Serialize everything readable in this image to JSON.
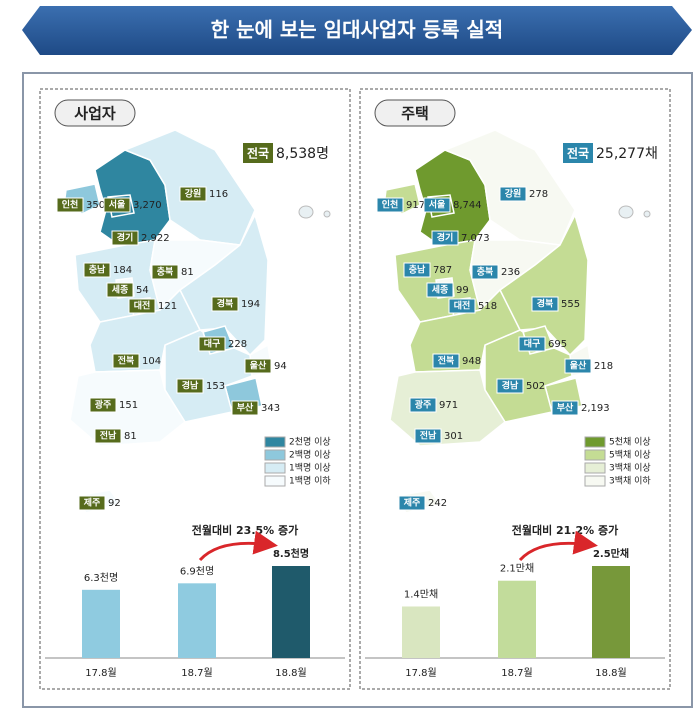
{
  "title": "한 눈에 보는 임대사업자 등록 실적",
  "panels": [
    {
      "tag": "사업자",
      "total_label": "전국",
      "total": "8,538명",
      "regions": [
        {
          "name": "인천",
          "value": "350",
          "color": "#8ec8dc"
        },
        {
          "name": "서울",
          "value": "3,270",
          "color": "#2f86a0"
        },
        {
          "name": "경기",
          "value": "2,922",
          "color": "#2f86a0"
        },
        {
          "name": "강원",
          "value": "116",
          "color": "#d6ecf4"
        },
        {
          "name": "충남",
          "value": "184",
          "color": "#d6ecf4"
        },
        {
          "name": "충북",
          "value": "81",
          "color": "#f6fbfd"
        },
        {
          "name": "세종",
          "value": "54",
          "color": "#f6fbfd"
        },
        {
          "name": "대전",
          "value": "121",
          "color": "#d6ecf4"
        },
        {
          "name": "경북",
          "value": "194",
          "color": "#d6ecf4"
        },
        {
          "name": "대구",
          "value": "228",
          "color": "#8ec8dc"
        },
        {
          "name": "울산",
          "value": "94",
          "color": "#f6fbfd"
        },
        {
          "name": "부산",
          "value": "343",
          "color": "#8ec8dc"
        },
        {
          "name": "경남",
          "value": "153",
          "color": "#d6ecf4"
        },
        {
          "name": "전북",
          "value": "104",
          "color": "#d6ecf4"
        },
        {
          "name": "광주",
          "value": "151",
          "color": "#d6ecf4"
        },
        {
          "name": "전남",
          "value": "81",
          "color": "#f6fbfd"
        },
        {
          "name": "제주",
          "value": "92",
          "color": "#f6fbfd"
        }
      ],
      "legend": [
        {
          "label": "2천명 이상",
          "color": "#2f86a0"
        },
        {
          "label": "2백명 이상",
          "color": "#8ec8dc"
        },
        {
          "label": "1백명 이상",
          "color": "#d6ecf4"
        },
        {
          "label": "1백명 이하",
          "color": "#f6fbfd"
        }
      ]
    },
    {
      "tag": "주택",
      "total_label": "전국",
      "total": "25,277채",
      "regions": [
        {
          "name": "인천",
          "value": "917",
          "color": "#c4dc94"
        },
        {
          "name": "서울",
          "value": "8,744",
          "color": "#6f9a2e"
        },
        {
          "name": "경기",
          "value": "7,073",
          "color": "#6f9a2e"
        },
        {
          "name": "강원",
          "value": "278",
          "color": "#f7f9f2"
        },
        {
          "name": "충남",
          "value": "787",
          "color": "#c4dc94"
        },
        {
          "name": "충북",
          "value": "236",
          "color": "#f7f9f2"
        },
        {
          "name": "세종",
          "value": "99",
          "color": "#f7f9f2"
        },
        {
          "name": "대전",
          "value": "518",
          "color": "#c4dc94"
        },
        {
          "name": "경북",
          "value": "555",
          "color": "#c4dc94"
        },
        {
          "name": "대구",
          "value": "695",
          "color": "#c4dc94"
        },
        {
          "name": "울산",
          "value": "218",
          "color": "#f7f9f2"
        },
        {
          "name": "부산",
          "value": "2,193",
          "color": "#c4dc94"
        },
        {
          "name": "경남",
          "value": "502",
          "color": "#c4dc94"
        },
        {
          "name": "전북",
          "value": "948",
          "color": "#c4dc94"
        },
        {
          "name": "광주",
          "value": "971",
          "color": "#c4dc94"
        },
        {
          "name": "전남",
          "value": "301",
          "color": "#e6efd6"
        },
        {
          "name": "제주",
          "value": "242",
          "color": "#f7f9f2"
        }
      ],
      "legend": [
        {
          "label": "5천채 이상",
          "color": "#6f9a2e"
        },
        {
          "label": "5백채 이상",
          "color": "#c4dc94"
        },
        {
          "label": "3백채 이상",
          "color": "#e6efd6"
        },
        {
          "label": "3백채 이하",
          "color": "#f7f9f2"
        }
      ]
    }
  ],
  "chart_data": [
    {
      "type": "bar",
      "annotation": "전월대비 23.5% 증가",
      "categories": [
        "17.8월",
        "18.7월",
        "18.8월"
      ],
      "values": [
        6.3,
        6.9,
        8.5
      ],
      "value_labels": [
        "6.3천명",
        "6.9천명",
        "8.5천명"
      ],
      "colors": [
        "#8fcbe0",
        "#8fcbe0",
        "#1f5a6b"
      ]
    },
    {
      "type": "bar",
      "annotation": "전월대비 21.2% 증가",
      "categories": [
        "17.8월",
        "18.7월",
        "18.8월"
      ],
      "values": [
        1.4,
        2.1,
        2.5
      ],
      "value_labels": [
        "1.4만채",
        "2.1만채",
        "2.5만채"
      ],
      "colors": [
        "#d9e6c0",
        "#c2dc9b",
        "#77983a"
      ]
    }
  ]
}
